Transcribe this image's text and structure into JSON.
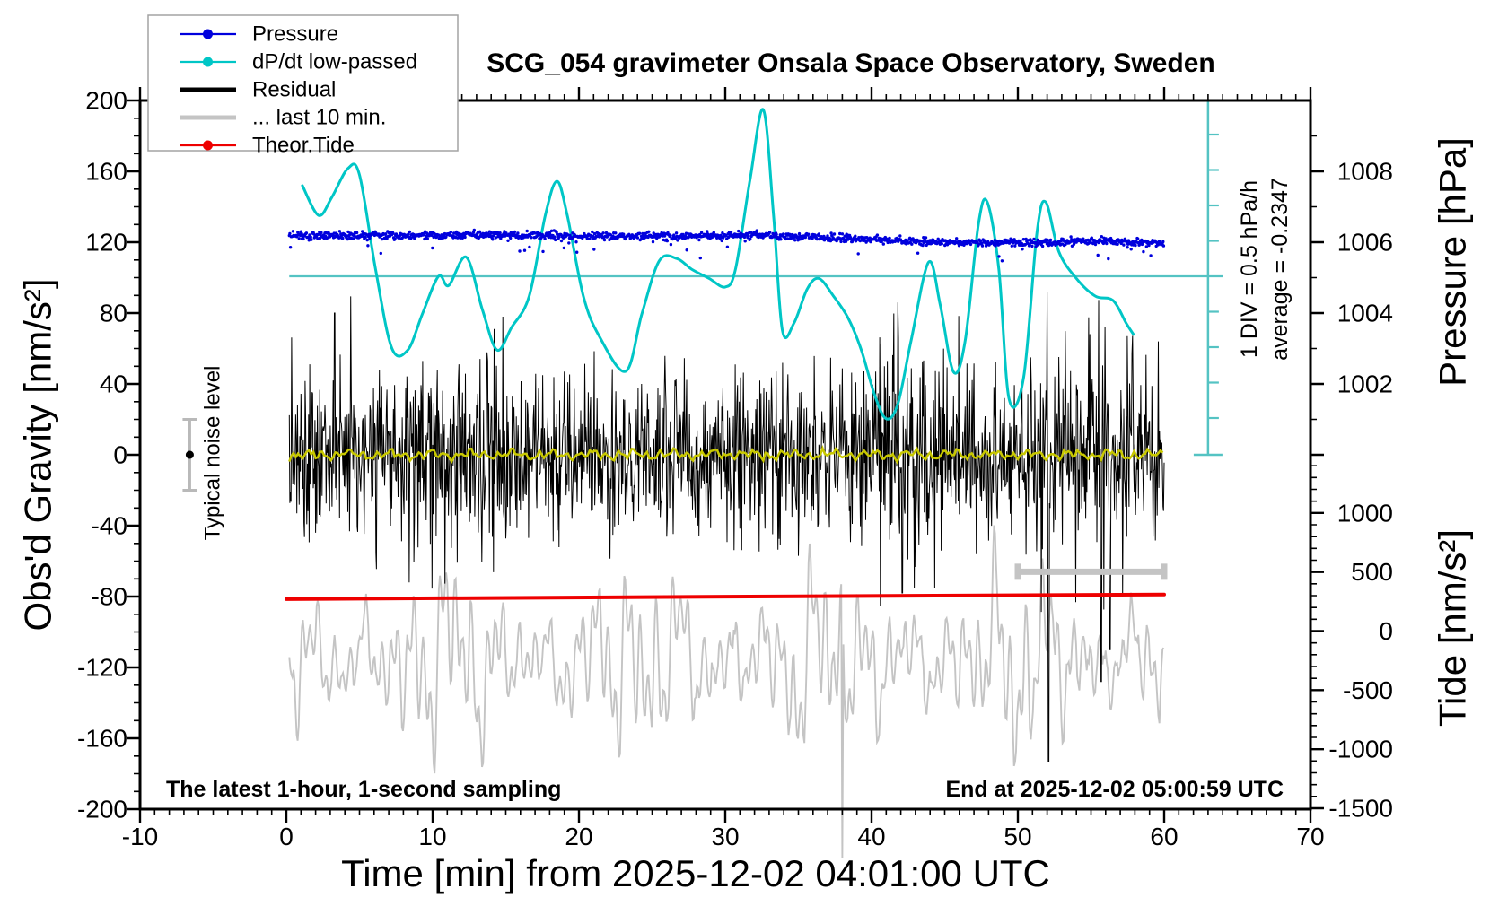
{
  "title": "SCG_054 gravimeter Onsala Space Observatory, Sweden",
  "legend": {
    "items": [
      {
        "label": "Pressure",
        "color": "#0000dd",
        "marker": "line-dot"
      },
      {
        "label": "dP/dt low-passed",
        "color": "#00c6c6",
        "marker": "line-dot"
      },
      {
        "label": "Residual",
        "color": "#000000",
        "marker": "thick-line"
      },
      {
        "label": "... last 10 min.",
        "color": "#c4c4c4",
        "marker": "thick-line"
      },
      {
        "label": "Theor.Tide",
        "color": "#ee0000",
        "marker": "line-dot"
      }
    ]
  },
  "axes": {
    "x": {
      "label": "Time [min] from 2025-12-02 04:01:00 UTC",
      "min": -10,
      "max": 70,
      "major": 10,
      "minor": 1
    },
    "gravity": {
      "label": "Obs'd Gravity [nm/s²]",
      "min": -200,
      "max": 200,
      "major": 40,
      "minor": 10
    },
    "pressure": {
      "label": "Pressure [hPa]",
      "min": 1000,
      "max": 1010,
      "major": 2,
      "minor": 1,
      "labeled_ticks": [
        1002,
        1004,
        1006,
        1008
      ]
    },
    "tide": {
      "label": "Tide [nm/s²]",
      "min": -1500,
      "max": 1500,
      "major": 500,
      "minor": 100,
      "labeled_ticks": [
        1000,
        500,
        0,
        -500,
        -1000,
        -1500
      ]
    }
  },
  "annotations": {
    "noise_label": "Typical noise level",
    "div_label": "1 DIV = 0.5 hPa/h",
    "average_label": "average = -0.2347",
    "sampling_note": "The latest 1-hour, 1-second sampling",
    "end_note": "End at 2025-12-02 05:00:59 UTC"
  },
  "chart_data": {
    "type": "line",
    "x_axis": "time minutes from 2025-12-02 04:01:00 UTC, data span 0-60 min",
    "series": [
      {
        "name": "Pressure",
        "axis": "pressure",
        "unit": "hPa",
        "color": "#0000dd",
        "style": "scatter-band",
        "noise_sd": 0.055,
        "outlier_fraction": 0.012,
        "baseline": [
          [
            0,
            1006.18
          ],
          [
            5,
            1006.2
          ],
          [
            10,
            1006.19
          ],
          [
            15,
            1006.2
          ],
          [
            20,
            1006.18
          ],
          [
            25,
            1006.17
          ],
          [
            30,
            1006.19
          ],
          [
            32,
            1006.2
          ],
          [
            35,
            1006.16
          ],
          [
            38,
            1006.1
          ],
          [
            40,
            1006.07
          ],
          [
            42,
            1006.03
          ],
          [
            45,
            1006.0
          ],
          [
            48,
            1005.99
          ],
          [
            50,
            1005.99
          ],
          [
            52,
            1006.01
          ],
          [
            55,
            1006.03
          ],
          [
            58,
            1005.99
          ],
          [
            60,
            1005.97
          ]
        ]
      },
      {
        "name": "dP/dt low-passed",
        "axis": "dpdt",
        "unit": "hPa/h",
        "color": "#00c6c6",
        "style": "smooth-line",
        "points": [
          [
            1.1,
            1.28
          ],
          [
            2.2,
            0.86
          ],
          [
            3.1,
            1.11
          ],
          [
            4.2,
            1.52
          ],
          [
            5,
            1.43
          ],
          [
            6.1,
            0.1
          ],
          [
            7.2,
            -1.01
          ],
          [
            8.3,
            -1.04
          ],
          [
            9.3,
            -0.53
          ],
          [
            10.4,
            0
          ],
          [
            11.1,
            -0.13
          ],
          [
            12.3,
            0.27
          ],
          [
            13.4,
            -0.47
          ],
          [
            14.4,
            -1.04
          ],
          [
            15.4,
            -0.72
          ],
          [
            16.6,
            -0.28
          ],
          [
            17.7,
            0.86
          ],
          [
            18.5,
            1.34
          ],
          [
            19.2,
            0.86
          ],
          [
            20.3,
            -0.28
          ],
          [
            21.4,
            -0.85
          ],
          [
            23.2,
            -1.34
          ],
          [
            24.3,
            -0.53
          ],
          [
            25.5,
            0.22
          ],
          [
            26.7,
            0.25
          ],
          [
            27.7,
            0.1
          ],
          [
            28.9,
            -0.03
          ],
          [
            30,
            -0.15
          ],
          [
            30.7,
            0.1
          ],
          [
            31.7,
            1.37
          ],
          [
            32.6,
            2.35
          ],
          [
            33.3,
            0.86
          ],
          [
            33.9,
            -0.76
          ],
          [
            34.7,
            -0.66
          ],
          [
            35.6,
            -0.18
          ],
          [
            36.4,
            -0.03
          ],
          [
            37.4,
            -0.28
          ],
          [
            38.4,
            -0.59
          ],
          [
            39.3,
            -1.04
          ],
          [
            40.2,
            -1.67
          ],
          [
            41,
            -2.01
          ],
          [
            41.8,
            -1.8
          ],
          [
            42.7,
            -0.91
          ],
          [
            43.9,
            0.2
          ],
          [
            44.7,
            -0.41
          ],
          [
            45.6,
            -1.35
          ],
          [
            46.4,
            -0.91
          ],
          [
            47.3,
            0.73
          ],
          [
            47.9,
            1.05
          ],
          [
            48.7,
            0.1
          ],
          [
            49.4,
            -1.73
          ],
          [
            50.4,
            -1.42
          ],
          [
            51.3,
            0.61
          ],
          [
            51.9,
            1.05
          ],
          [
            52.8,
            0.35
          ],
          [
            54,
            -0.03
          ],
          [
            55.3,
            -0.28
          ],
          [
            56.5,
            -0.34
          ],
          [
            57.4,
            -0.66
          ],
          [
            57.9,
            -0.82
          ]
        ]
      },
      {
        "name": "Residual",
        "axis": "gravity",
        "unit": "nm/s²",
        "color": "#000000",
        "style": "noise-1s-sampling",
        "envelope": [
          [
            0,
            52
          ],
          [
            4,
            56
          ],
          [
            8,
            50
          ],
          [
            12,
            58
          ],
          [
            16,
            53
          ],
          [
            20,
            50
          ],
          [
            24,
            54
          ],
          [
            28,
            58
          ],
          [
            32,
            53
          ],
          [
            36,
            50
          ],
          [
            40,
            56
          ],
          [
            41.5,
            80
          ],
          [
            42.5,
            72
          ],
          [
            44,
            62
          ],
          [
            46,
            55
          ],
          [
            48,
            53
          ],
          [
            50,
            56
          ],
          [
            51.5,
            62
          ],
          [
            53,
            58
          ],
          [
            55,
            68
          ],
          [
            56,
            72
          ],
          [
            57,
            60
          ],
          [
            58,
            56
          ],
          [
            60,
            52
          ]
        ],
        "spikes": [
          [
            3.3,
            80
          ],
          [
            8.4,
            -72
          ],
          [
            14.8,
            78
          ],
          [
            41.8,
            86
          ],
          [
            42.1,
            -78
          ],
          [
            52,
            92
          ],
          [
            52.1,
            -173
          ],
          [
            55.7,
            -128
          ],
          [
            56.3,
            -110
          ]
        ]
      },
      {
        "name": "... last 10 min.",
        "axis": "tide",
        "unit": "nm/s² (tide scale)",
        "color": "#c4c4c4",
        "style": "oscillation",
        "mean": -250,
        "components": [
          [
            0.55,
            300
          ],
          [
            1.05,
            280
          ],
          [
            1.8,
            240
          ],
          [
            3.1,
            260
          ],
          [
            5.2,
            150
          ]
        ],
        "mod_period": 13,
        "spike": [
          38,
          -1950
        ]
      },
      {
        "name": "Theor.Tide",
        "axis": "tide",
        "unit": "nm/s²",
        "color": "#ee0000",
        "style": "line",
        "points": [
          [
            0,
            270
          ],
          [
            30,
            292
          ],
          [
            60,
            310
          ]
        ]
      },
      {
        "name": "residual-lowpass",
        "axis": "gravity",
        "unit": "nm/s²",
        "color": "#c8c800",
        "style": "wiggle",
        "amplitude": 3
      }
    ],
    "references": {
      "dpdt_zero_line": {
        "value": 0,
        "from_t": 0.2,
        "to_t": 63
      },
      "div_bar": {
        "t": 63,
        "divisions": 10,
        "div_value_hPa_per_h": 0.5
      },
      "noise_errorbar": {
        "t": -6.6,
        "center": 0,
        "half_range": 20
      },
      "last10_window_bar": {
        "t_start": 50,
        "t_end": 60,
        "gravity": -66
      }
    }
  }
}
